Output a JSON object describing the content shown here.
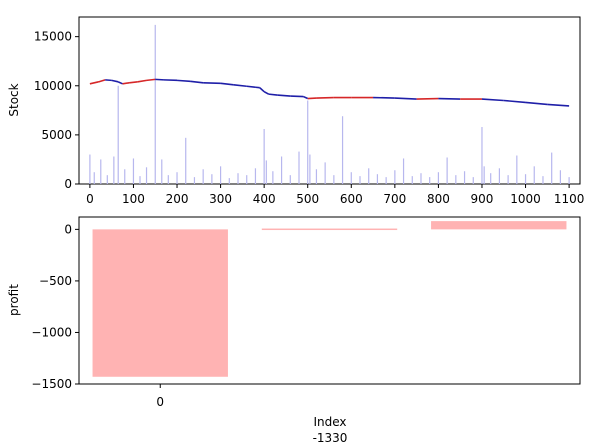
{
  "colors": {
    "volume": "#b7b7ee",
    "price_up": "#d62728",
    "price_down": "#1f1fa8",
    "profit_bar": "#ffb3b3"
  },
  "chart_data": [
    {
      "type": "line",
      "ylabel": "Stock",
      "xlim": [
        -25,
        1125
      ],
      "ylim": [
        0,
        17000
      ],
      "xticks": [
        0,
        100,
        200,
        300,
        400,
        500,
        600,
        700,
        800,
        900,
        1000,
        1100
      ],
      "yticks": [
        0,
        5000,
        10000,
        15000
      ],
      "tick_labels_x": [
        "0",
        "100",
        "200",
        "300",
        "400",
        "500",
        "600",
        "700",
        "800",
        "900",
        "1000",
        "1100"
      ],
      "tick_labels_y": [
        "0",
        "5000",
        "10000",
        "15000"
      ],
      "price_series": {
        "x": [
          0,
          20,
          35,
          50,
          65,
          75,
          90,
          110,
          130,
          150,
          170,
          200,
          230,
          260,
          300,
          330,
          360,
          380,
          390,
          400,
          410,
          430,
          460,
          490,
          500,
          520,
          560,
          600,
          650,
          700,
          750,
          800,
          850,
          900,
          950,
          1000,
          1050,
          1100
        ],
        "y": [
          10200,
          10400,
          10600,
          10550,
          10400,
          10200,
          10300,
          10400,
          10550,
          10650,
          10600,
          10550,
          10450,
          10300,
          10250,
          10100,
          9950,
          9850,
          9800,
          9400,
          9150,
          9050,
          8950,
          8900,
          8700,
          8750,
          8800,
          8800,
          8800,
          8750,
          8650,
          8700,
          8650,
          8650,
          8500,
          8300,
          8100,
          7950
        ]
      },
      "volume_series": {
        "x": [
          0,
          10,
          25,
          40,
          55,
          65,
          80,
          100,
          115,
          130,
          150,
          165,
          180,
          200,
          220,
          240,
          260,
          280,
          300,
          320,
          340,
          360,
          380,
          400,
          405,
          420,
          440,
          460,
          480,
          500,
          505,
          520,
          540,
          560,
          580,
          600,
          620,
          640,
          660,
          680,
          700,
          720,
          740,
          760,
          780,
          800,
          820,
          840,
          860,
          880,
          900,
          905,
          920,
          940,
          960,
          980,
          1000,
          1020,
          1040,
          1060,
          1080,
          1100
        ],
        "y": [
          3000,
          1200,
          2500,
          900,
          2800,
          10000,
          1500,
          2600,
          800,
          1700,
          16200,
          2500,
          900,
          1200,
          4700,
          700,
          1500,
          1000,
          1800,
          600,
          1100,
          900,
          1600,
          5600,
          2400,
          1300,
          2800,
          900,
          3300,
          8500,
          3000,
          1500,
          2200,
          900,
          6900,
          1200,
          800,
          1600,
          1000,
          700,
          1400,
          2600,
          800,
          1100,
          700,
          1200,
          2700,
          900,
          1300,
          700,
          5800,
          1800,
          1100,
          1600,
          900,
          2900,
          1000,
          1800,
          800,
          3200,
          1400,
          700
        ]
      }
    },
    {
      "type": "bar",
      "ylabel": "profit",
      "xlabel": "Index",
      "xlabel_extra": "-1330",
      "ylim": [
        -1500,
        120
      ],
      "yticks": [
        0,
        -500,
        -1000,
        -1500
      ],
      "tick_labels_y": [
        "0",
        "−500",
        "−1000",
        "−1500"
      ],
      "xticks_labels": [
        "0"
      ],
      "bars": [
        {
          "x_start": 0,
          "x_end": 1,
          "value": -1430
        },
        {
          "x_start": 1.25,
          "x_end": 2.25,
          "value": 8
        },
        {
          "x_start": 2.5,
          "x_end": 3.5,
          "value": 80
        }
      ],
      "xlim": [
        -0.1,
        3.6
      ]
    }
  ]
}
